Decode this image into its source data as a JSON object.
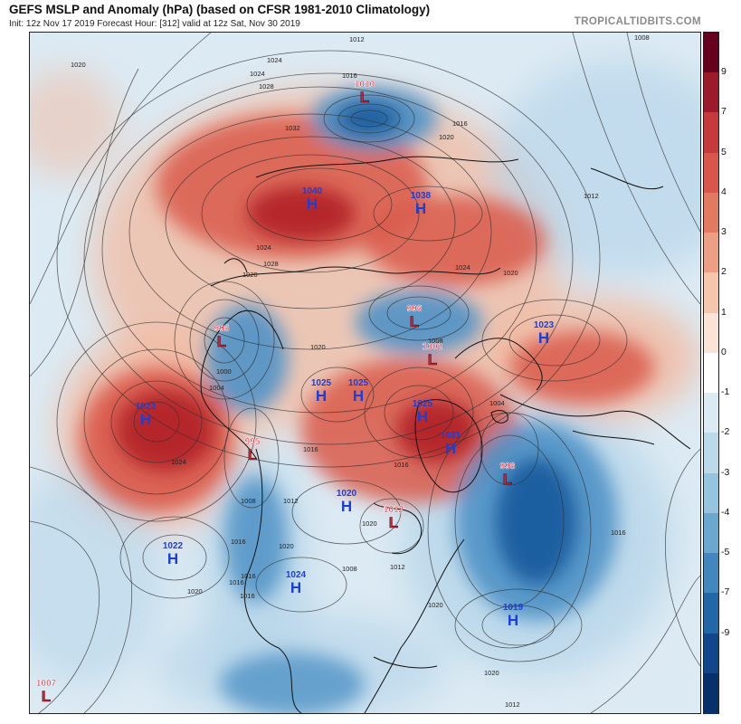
{
  "header": {
    "title": "GEFS MSLP and Anomaly (hPa) (based on CFSR 1981-2010 Climatology)",
    "subtitle": "Init: 12z Nov 17 2019   Forecast Hour: [312]   valid at 12z Sat, Nov 30 2019",
    "brand": "TROPICALTIDBITS.COM"
  },
  "colorbar": {
    "ticks": [
      "9",
      "7",
      "5",
      "4",
      "3",
      "2",
      "1",
      "0",
      "-1",
      "-2",
      "-3",
      "-4",
      "-5",
      "-7",
      "-9"
    ],
    "colors": [
      "#67001f",
      "#9b1b2c",
      "#c53b3c",
      "#d8564b",
      "#e27a61",
      "#ec9f85",
      "#f5c5ad",
      "#fbe3d5",
      "#ffffff",
      "#dbeaf3",
      "#bcd9ea",
      "#96c4df",
      "#6aa8d0",
      "#4288be",
      "#2467a8",
      "#11468a",
      "#08306b"
    ]
  },
  "map": {
    "colors": {
      "high_label": "#1c3fd6",
      "low_label": "#e0202e",
      "low_outline": "#1a1a1a",
      "coast": "#111111",
      "isobar": "#333333",
      "pos_strong": "#b5252c",
      "pos_mid": "#d9594b",
      "pos_light": "#f2b9a0",
      "neg_strong": "#1d5fa0",
      "neg_mid": "#4f92c6",
      "neg_light": "#b8d6ea"
    },
    "centers": [
      {
        "kind": "L",
        "value": "1010"
      },
      {
        "kind": "H",
        "value": "1040"
      },
      {
        "kind": "H",
        "value": "1038"
      },
      {
        "kind": "L",
        "value": "995"
      },
      {
        "kind": "L",
        "value": "996"
      },
      {
        "kind": "H",
        "value": "1023"
      },
      {
        "kind": "L",
        "value": "1002"
      },
      {
        "kind": "H",
        "value": "1025"
      },
      {
        "kind": "H",
        "value": "1025"
      },
      {
        "kind": "H",
        "value": "1023"
      },
      {
        "kind": "H",
        "value": "1025"
      },
      {
        "kind": "L",
        "value": "995"
      },
      {
        "kind": "H",
        "value": "1031"
      },
      {
        "kind": "L",
        "value": "998"
      },
      {
        "kind": "H",
        "value": "1020"
      },
      {
        "kind": "L",
        "value": "1012"
      },
      {
        "kind": "H",
        "value": "1022"
      },
      {
        "kind": "H",
        "value": "1024"
      },
      {
        "kind": "H",
        "value": "1019"
      },
      {
        "kind": "L",
        "value": "1007"
      }
    ],
    "isobar_labels": [
      "1012",
      "1008",
      "1020",
      "1024",
      "1016",
      "1024",
      "1028",
      "1032",
      "1024",
      "1012",
      "1020",
      "1024",
      "1028",
      "1020",
      "1016",
      "1020",
      "1000",
      "1004",
      "1020",
      "1008",
      "1004",
      "1016",
      "1024",
      "1008",
      "1016",
      "1012",
      "1020",
      "1016",
      "1020",
      "1016",
      "1016",
      "1016",
      "1020",
      "1012",
      "1008",
      "1020",
      "1016",
      "1020",
      "1012"
    ]
  }
}
